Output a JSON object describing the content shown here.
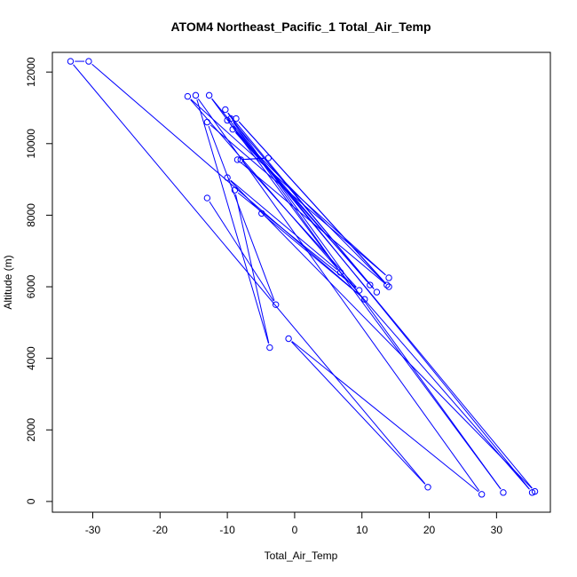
{
  "chart_data": {
    "type": "line",
    "title": "ATOM4 Northeast_Pacific_1 Total_Air_Temp",
    "xlabel": "Total_Air_Temp",
    "ylabel": "Altitude (m)",
    "xlim": [
      -36,
      38
    ],
    "ylim": [
      -300,
      12550
    ],
    "xticks": [
      -30,
      -20,
      -10,
      0,
      10,
      20,
      30
    ],
    "yticks": [
      0,
      2000,
      4000,
      6000,
      8000,
      10000,
      12000
    ],
    "marker": "open-circle",
    "series": [
      {
        "color": "#0000ff",
        "points": [
          {
            "x": -13.0,
            "y": 8480
          },
          {
            "x": -2.8,
            "y": 5500
          },
          {
            "x": -13.0,
            "y": 10600
          },
          {
            "x": 14.0,
            "y": 6250
          },
          {
            "x": -15.9,
            "y": 11320
          },
          {
            "x": 35.3,
            "y": 250
          },
          {
            "x": -12.7,
            "y": 11350
          },
          {
            "x": 31.0,
            "y": 250
          },
          {
            "x": -10.3,
            "y": 10950
          },
          {
            "x": 11.2,
            "y": 6050
          },
          {
            "x": -10.0,
            "y": 10650
          },
          {
            "x": 35.7,
            "y": 280
          },
          {
            "x": -10.0,
            "y": 9050
          },
          {
            "x": 6.8,
            "y": 6400
          },
          {
            "x": -9.5,
            "y": 10700
          },
          {
            "x": 12.2,
            "y": 5850
          },
          {
            "x": -9.2,
            "y": 10400
          },
          {
            "x": 13.7,
            "y": 6050
          },
          {
            "x": -8.7,
            "y": 10700
          },
          {
            "x": 14.0,
            "y": 6000
          },
          {
            "x": -8.5,
            "y": 9550
          },
          {
            "x": -3.9,
            "y": 9600
          },
          {
            "x": -8.0,
            "y": 9550
          },
          {
            "x": 9.6,
            "y": 5900
          },
          {
            "x": -8.9,
            "y": 8700
          },
          {
            "x": -3.7,
            "y": 4300
          },
          {
            "x": -14.7,
            "y": 11350
          },
          {
            "x": 27.8,
            "y": 200
          },
          {
            "x": -0.9,
            "y": 4550
          },
          {
            "x": 19.8,
            "y": 400
          },
          {
            "x": -33.3,
            "y": 12300
          },
          {
            "x": -30.6,
            "y": 12300
          },
          {
            "x": 10.4,
            "y": 5650
          },
          {
            "x": -4.9,
            "y": 8050
          }
        ]
      }
    ]
  }
}
